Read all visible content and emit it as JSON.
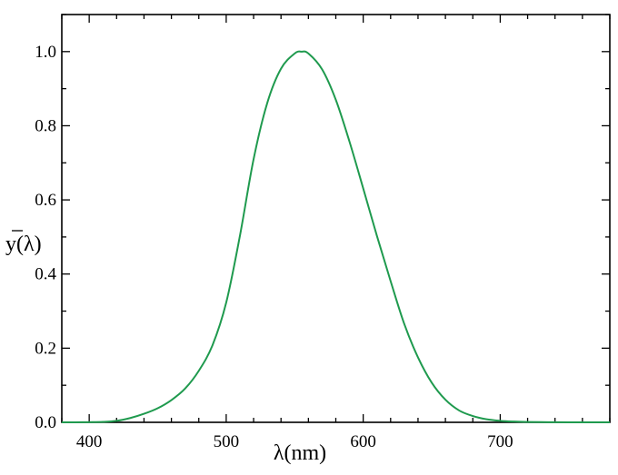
{
  "chart_data": {
    "type": "line",
    "title": "",
    "xlabel": "λ(nm)",
    "ylabel": "y(λ)",
    "xlim": [
      380,
      780
    ],
    "ylim": [
      0.0,
      1.1
    ],
    "xticks": [
      400,
      500,
      600,
      700
    ],
    "xtick_labels": [
      "400",
      "500",
      "600",
      "700"
    ],
    "yticks": [
      0.0,
      0.2,
      0.4,
      0.6,
      0.8,
      1.0
    ],
    "ytick_labels": [
      "0.0",
      "0.2",
      "0.4",
      "0.6",
      "0.8",
      "1.0"
    ],
    "grid": false,
    "legend": "none",
    "series": [
      {
        "color": "#1f9a4e",
        "x": [
          380,
          390,
          400,
          410,
          420,
          430,
          440,
          450,
          460,
          470,
          480,
          490,
          500,
          510,
          520,
          530,
          540,
          550,
          555,
          560,
          570,
          580,
          590,
          600,
          610,
          620,
          630,
          640,
          650,
          660,
          670,
          680,
          690,
          700,
          710,
          720,
          730,
          740,
          750,
          760,
          770,
          780
        ],
        "y": [
          0.0,
          0.0001,
          0.0004,
          0.0012,
          0.004,
          0.0116,
          0.023,
          0.038,
          0.06,
          0.091,
          0.139,
          0.208,
          0.323,
          0.503,
          0.71,
          0.862,
          0.954,
          0.995,
          1.0,
          0.995,
          0.952,
          0.87,
          0.757,
          0.631,
          0.503,
          0.381,
          0.265,
          0.175,
          0.107,
          0.061,
          0.032,
          0.017,
          0.0082,
          0.0041,
          0.0021,
          0.001,
          0.0005,
          0.0002,
          0.0001,
          0.0,
          0.0,
          0.0
        ]
      }
    ]
  }
}
